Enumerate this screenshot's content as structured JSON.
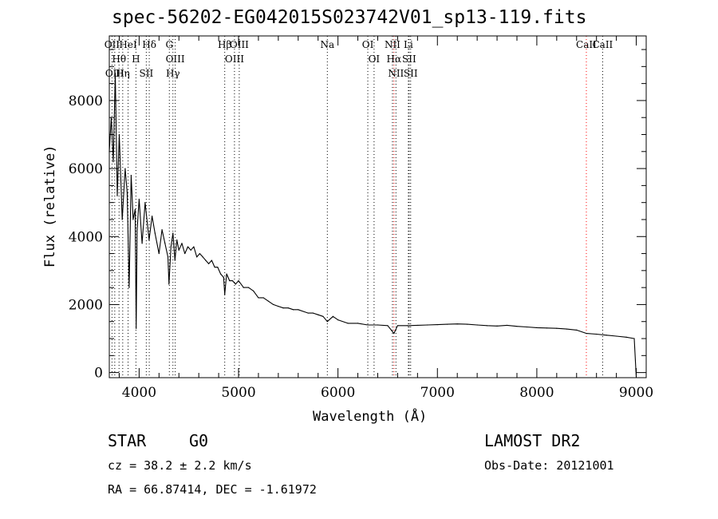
{
  "chart_data": {
    "type": "line",
    "title": "spec-56202-EG042015S023742V01_sp13-119.fits",
    "xlabel": "Wavelength (Å)",
    "ylabel": "Flux (relative)",
    "xlim": [
      3700,
      9100
    ],
    "ylim": [
      -150,
      9900
    ],
    "xticks": [
      4000,
      5000,
      6000,
      7000,
      8000,
      9000
    ],
    "yticks": [
      0,
      2000,
      4000,
      6000,
      8000
    ],
    "grid": false,
    "series": [
      {
        "color": "#000000",
        "x": [
          3700,
          3720,
          3740,
          3760,
          3780,
          3800,
          3830,
          3860,
          3880,
          3900,
          3920,
          3940,
          3960,
          3970,
          3980,
          4000,
          4030,
          4060,
          4100,
          4130,
          4160,
          4200,
          4230,
          4260,
          4290,
          4300,
          4320,
          4340,
          4360,
          4380,
          4400,
          4430,
          4460,
          4490,
          4520,
          4550,
          4580,
          4610,
          4640,
          4670,
          4700,
          4730,
          4760,
          4790,
          4820,
          4850,
          4861,
          4880,
          4910,
          4940,
          4970,
          5000,
          5050,
          5100,
          5150,
          5200,
          5250,
          5300,
          5350,
          5400,
          5450,
          5500,
          5550,
          5600,
          5650,
          5700,
          5750,
          5800,
          5850,
          5893,
          5950,
          6000,
          6100,
          6200,
          6300,
          6400,
          6500,
          6563,
          6600,
          6700,
          6800,
          6900,
          7000,
          7100,
          7200,
          7300,
          7400,
          7500,
          7600,
          7700,
          7800,
          7900,
          8000,
          8100,
          8200,
          8300,
          8400,
          8500,
          8600,
          8700,
          8800,
          8900,
          8980,
          9000
        ],
        "y": [
          6500,
          7500,
          6200,
          8800,
          5200,
          7000,
          4500,
          6000,
          5300,
          2500,
          5800,
          4500,
          4800,
          1300,
          4200,
          5100,
          3800,
          5000,
          3900,
          4600,
          4100,
          3500,
          4200,
          3800,
          3400,
          2600,
          3700,
          4100,
          3300,
          3900,
          3600,
          3800,
          3500,
          3700,
          3600,
          3700,
          3400,
          3500,
          3400,
          3300,
          3200,
          3300,
          3100,
          3100,
          2900,
          2800,
          2300,
          2900,
          2700,
          2700,
          2600,
          2700,
          2500,
          2500,
          2400,
          2200,
          2200,
          2100,
          2000,
          1950,
          1900,
          1900,
          1850,
          1850,
          1800,
          1750,
          1750,
          1700,
          1650,
          1500,
          1650,
          1550,
          1450,
          1450,
          1400,
          1400,
          1380,
          1150,
          1380,
          1380,
          1390,
          1400,
          1410,
          1420,
          1430,
          1420,
          1400,
          1380,
          1370,
          1390,
          1360,
          1340,
          1320,
          1310,
          1300,
          1280,
          1250,
          1150,
          1130,
          1100,
          1070,
          1040,
          1000,
          -120
        ]
      }
    ],
    "line_markers": [
      {
        "label": "OII",
        "wavelength": 3727,
        "color": "#000000"
      },
      {
        "label": "Hθ",
        "wavelength": 3798,
        "color": "#000000"
      },
      {
        "label": "Hη",
        "wavelength": 3835,
        "color": "#000000"
      },
      {
        "label": "HeI",
        "wavelength": 3889,
        "color": "#000000"
      },
      {
        "label": "OIII",
        "wavelength": 3755,
        "color": "#000000"
      },
      {
        "label": "H",
        "wavelength": 3968,
        "color": "#000000"
      },
      {
        "label": "Hδ",
        "wavelength": 4102,
        "color": "#000000"
      },
      {
        "label": "SII",
        "wavelength": 4072,
        "color": "#000000"
      },
      {
        "label": "G",
        "wavelength": 4304,
        "color": "#000000"
      },
      {
        "label": "OIII",
        "wavelength": 4363,
        "color": "#000000"
      },
      {
        "label": "Hγ",
        "wavelength": 4340,
        "color": "#000000"
      },
      {
        "label": "Hβ",
        "wavelength": 4861,
        "color": "#000000"
      },
      {
        "label": "OIII",
        "wavelength": 4959,
        "color": "#000000"
      },
      {
        "label": "OIII",
        "wavelength": 5007,
        "color": "#000000"
      },
      {
        "label": "Na",
        "wavelength": 5893,
        "color": "#000000"
      },
      {
        "label": "OI",
        "wavelength": 6300,
        "color": "#000000"
      },
      {
        "label": "OI",
        "wavelength": 6363,
        "color": "#000000"
      },
      {
        "label": "NII",
        "wavelength": 6548,
        "color": "#000000"
      },
      {
        "label": "Hα",
        "wavelength": 6563,
        "color": "#ff0000"
      },
      {
        "label": "NII",
        "wavelength": 6583,
        "color": "#000000"
      },
      {
        "label": "Li",
        "wavelength": 6708,
        "color": "#000000"
      },
      {
        "label": "SII",
        "wavelength": 6716,
        "color": "#000000"
      },
      {
        "label": "SII",
        "wavelength": 6731,
        "color": "#000000"
      },
      {
        "label": "CaII",
        "wavelength": 8498,
        "color": "#ff0000"
      },
      {
        "label": "CaII",
        "wavelength": 8662,
        "color": "#000000"
      }
    ]
  },
  "info": {
    "object_class": "STAR",
    "subclass": "G0",
    "survey": "LAMOST DR2",
    "redshift": "cz =  38.2 ± 2.2 km/s",
    "obs_date": "Obs-Date: 20121001",
    "coordinates": "RA =  66.87414, DEC =  -1.61972"
  }
}
